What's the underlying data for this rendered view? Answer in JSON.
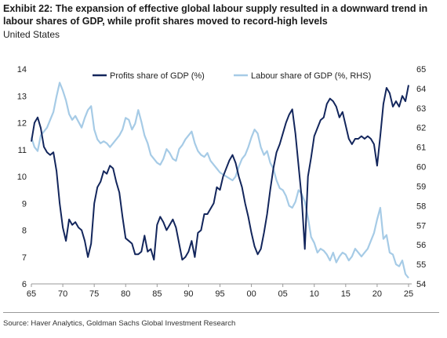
{
  "title_prefix": "Exhibit 22:",
  "title_text": "The expansion of effective global labour supply resulted in a downward trend in labour shares of GDP, while profit shares moved to record-high levels",
  "subtitle": "United States",
  "source": "Source: Haver Analytics, Goldman Sachs Global Investment Research",
  "colors": {
    "profits": "#13265c",
    "labour": "#a6cbe6",
    "axis": "#9a9a9a"
  },
  "chart_data": {
    "type": "line",
    "xlabel": "",
    "x_ticks": [
      "65",
      "70",
      "75",
      "80",
      "85",
      "90",
      "95",
      "00",
      "05",
      "10",
      "15",
      "20",
      "25"
    ],
    "x_range": [
      1965,
      2025.5
    ],
    "ylim_left": [
      6,
      14
    ],
    "y_ticks_left": [
      "6",
      "7",
      "8",
      "9",
      "10",
      "11",
      "12",
      "13",
      "14"
    ],
    "ylim_right": [
      54,
      65
    ],
    "y_ticks_right": [
      "54",
      "55",
      "56",
      "57",
      "58",
      "59",
      "60",
      "61",
      "62",
      "63",
      "64",
      "65"
    ],
    "legend_position": "top",
    "grid": false,
    "series": [
      {
        "name": "Profits share of GDP (%)",
        "axis": "left",
        "points": [
          [
            1965,
            11.3
          ],
          [
            1965.5,
            12.0
          ],
          [
            1966,
            12.2
          ],
          [
            1966.5,
            11.8
          ],
          [
            1967,
            11.1
          ],
          [
            1967.5,
            10.9
          ],
          [
            1968,
            10.8
          ],
          [
            1968.5,
            10.9
          ],
          [
            1969,
            10.2
          ],
          [
            1969.5,
            9.0
          ],
          [
            1970,
            8.1
          ],
          [
            1970.5,
            7.6
          ],
          [
            1971,
            8.4
          ],
          [
            1971.5,
            8.2
          ],
          [
            1972,
            8.3
          ],
          [
            1972.5,
            8.1
          ],
          [
            1973,
            8.0
          ],
          [
            1973.5,
            7.6
          ],
          [
            1974,
            7.0
          ],
          [
            1974.5,
            7.5
          ],
          [
            1975,
            9.0
          ],
          [
            1975.5,
            9.6
          ],
          [
            1976,
            9.8
          ],
          [
            1976.5,
            10.2
          ],
          [
            1977,
            10.1
          ],
          [
            1977.5,
            10.4
          ],
          [
            1978,
            10.3
          ],
          [
            1978.5,
            9.8
          ],
          [
            1979,
            9.4
          ],
          [
            1979.5,
            8.5
          ],
          [
            1980,
            7.7
          ],
          [
            1980.5,
            7.6
          ],
          [
            1981,
            7.5
          ],
          [
            1981.5,
            7.1
          ],
          [
            1982,
            7.1
          ],
          [
            1982.5,
            7.2
          ],
          [
            1983,
            7.8
          ],
          [
            1983.5,
            7.2
          ],
          [
            1984,
            7.3
          ],
          [
            1984.5,
            6.9
          ],
          [
            1985,
            8.2
          ],
          [
            1985.5,
            8.5
          ],
          [
            1986,
            8.3
          ],
          [
            1986.5,
            8.0
          ],
          [
            1987,
            8.2
          ],
          [
            1987.5,
            8.4
          ],
          [
            1988,
            8.1
          ],
          [
            1988.5,
            7.5
          ],
          [
            1989,
            6.9
          ],
          [
            1989.5,
            7.0
          ],
          [
            1990,
            7.2
          ],
          [
            1990.5,
            7.6
          ],
          [
            1991,
            7.0
          ],
          [
            1991.5,
            7.9
          ],
          [
            1992,
            8.0
          ],
          [
            1992.5,
            8.6
          ],
          [
            1993,
            8.6
          ],
          [
            1993.5,
            8.8
          ],
          [
            1994,
            9.0
          ],
          [
            1994.5,
            9.6
          ],
          [
            1995,
            9.5
          ],
          [
            1995.5,
            10.0
          ],
          [
            1996,
            10.3
          ],
          [
            1996.5,
            10.6
          ],
          [
            1997,
            10.8
          ],
          [
            1997.5,
            10.5
          ],
          [
            1998,
            10.0
          ],
          [
            1998.5,
            9.6
          ],
          [
            1999,
            9.0
          ],
          [
            1999.5,
            8.5
          ],
          [
            2000,
            7.9
          ],
          [
            2000.5,
            7.4
          ],
          [
            2001,
            7.1
          ],
          [
            2001.5,
            7.3
          ],
          [
            2002,
            7.9
          ],
          [
            2002.5,
            8.6
          ],
          [
            2003,
            9.5
          ],
          [
            2003.5,
            10.3
          ],
          [
            2004,
            10.9
          ],
          [
            2004.5,
            11.2
          ],
          [
            2005,
            11.6
          ],
          [
            2005.5,
            12.0
          ],
          [
            2006,
            12.3
          ],
          [
            2006.5,
            12.5
          ],
          [
            2007,
            11.6
          ],
          [
            2007.5,
            10.4
          ],
          [
            2008,
            9.2
          ],
          [
            2008.5,
            7.3
          ],
          [
            2009,
            10.0
          ],
          [
            2009.5,
            10.7
          ],
          [
            2010,
            11.5
          ],
          [
            2010.5,
            11.8
          ],
          [
            2011,
            12.1
          ],
          [
            2011.5,
            12.2
          ],
          [
            2012,
            12.7
          ],
          [
            2012.5,
            12.9
          ],
          [
            2013,
            12.8
          ],
          [
            2013.5,
            12.6
          ],
          [
            2014,
            12.2
          ],
          [
            2014.5,
            12.4
          ],
          [
            2015,
            11.9
          ],
          [
            2015.5,
            11.4
          ],
          [
            2016,
            11.2
          ],
          [
            2016.5,
            11.4
          ],
          [
            2017,
            11.4
          ],
          [
            2017.5,
            11.5
          ],
          [
            2018,
            11.4
          ],
          [
            2018.5,
            11.5
          ],
          [
            2019,
            11.4
          ],
          [
            2019.5,
            11.2
          ],
          [
            2020,
            10.4
          ],
          [
            2020.5,
            11.5
          ],
          [
            2021,
            12.7
          ],
          [
            2021.5,
            13.3
          ],
          [
            2022,
            13.1
          ],
          [
            2022.5,
            12.6
          ],
          [
            2023,
            12.8
          ],
          [
            2023.5,
            12.6
          ],
          [
            2024,
            13.0
          ],
          [
            2024.5,
            12.8
          ],
          [
            2025,
            13.4
          ]
        ]
      },
      {
        "name": "Labour share of GDP (%, RHS)",
        "axis": "right",
        "points": [
          [
            1965,
            61.5
          ],
          [
            1965.5,
            61.0
          ],
          [
            1966,
            60.8
          ],
          [
            1966.5,
            61.6
          ],
          [
            1967,
            61.8
          ],
          [
            1967.5,
            62.0
          ],
          [
            1968,
            62.4
          ],
          [
            1968.5,
            62.8
          ],
          [
            1969,
            63.6
          ],
          [
            1969.5,
            64.3
          ],
          [
            1970,
            63.9
          ],
          [
            1970.5,
            63.4
          ],
          [
            1971,
            62.7
          ],
          [
            1971.5,
            62.4
          ],
          [
            1972,
            62.6
          ],
          [
            1972.5,
            62.3
          ],
          [
            1973,
            62.0
          ],
          [
            1973.5,
            62.5
          ],
          [
            1974,
            62.9
          ],
          [
            1974.5,
            63.1
          ],
          [
            1975,
            61.9
          ],
          [
            1975.5,
            61.4
          ],
          [
            1976,
            61.2
          ],
          [
            1976.5,
            61.3
          ],
          [
            1977,
            61.2
          ],
          [
            1977.5,
            61.0
          ],
          [
            1978,
            61.2
          ],
          [
            1978.5,
            61.4
          ],
          [
            1979,
            61.6
          ],
          [
            1979.5,
            61.9
          ],
          [
            1980,
            62.5
          ],
          [
            1980.5,
            62.4
          ],
          [
            1981,
            61.9
          ],
          [
            1981.5,
            62.2
          ],
          [
            1982,
            62.9
          ],
          [
            1982.5,
            62.3
          ],
          [
            1983,
            61.6
          ],
          [
            1983.5,
            61.2
          ],
          [
            1984,
            60.6
          ],
          [
            1984.5,
            60.4
          ],
          [
            1985,
            60.2
          ],
          [
            1985.5,
            60.1
          ],
          [
            1986,
            60.4
          ],
          [
            1986.5,
            60.9
          ],
          [
            1987,
            60.7
          ],
          [
            1987.5,
            60.4
          ],
          [
            1988,
            60.3
          ],
          [
            1988.5,
            60.9
          ],
          [
            1989,
            61.1
          ],
          [
            1989.5,
            61.4
          ],
          [
            1990,
            61.6
          ],
          [
            1990.5,
            61.8
          ],
          [
            1991,
            61.2
          ],
          [
            1991.5,
            60.8
          ],
          [
            1992,
            60.6
          ],
          [
            1992.5,
            60.5
          ],
          [
            1993,
            60.7
          ],
          [
            1993.5,
            60.3
          ],
          [
            1994,
            60.1
          ],
          [
            1994.5,
            59.9
          ],
          [
            1995,
            59.7
          ],
          [
            1995.5,
            59.6
          ],
          [
            1996,
            59.5
          ],
          [
            1996.5,
            59.4
          ],
          [
            1997,
            59.3
          ],
          [
            1997.5,
            59.5
          ],
          [
            1998,
            60.0
          ],
          [
            1998.5,
            60.4
          ],
          [
            1999,
            60.6
          ],
          [
            1999.5,
            61.0
          ],
          [
            2000,
            61.5
          ],
          [
            2000.5,
            61.9
          ],
          [
            2001,
            61.7
          ],
          [
            2001.5,
            61.0
          ],
          [
            2002,
            60.6
          ],
          [
            2002.5,
            60.8
          ],
          [
            2003,
            60.2
          ],
          [
            2003.5,
            59.9
          ],
          [
            2004,
            59.3
          ],
          [
            2004.5,
            58.9
          ],
          [
            2005,
            58.8
          ],
          [
            2005.5,
            58.5
          ],
          [
            2006,
            58.0
          ],
          [
            2006.5,
            57.9
          ],
          [
            2007,
            58.2
          ],
          [
            2007.5,
            58.8
          ],
          [
            2008,
            58.6
          ],
          [
            2008.5,
            58.2
          ],
          [
            2009,
            57.4
          ],
          [
            2009.5,
            56.4
          ],
          [
            2010,
            56.1
          ],
          [
            2010.5,
            55.6
          ],
          [
            2011,
            55.8
          ],
          [
            2011.5,
            55.7
          ],
          [
            2012,
            55.5
          ],
          [
            2012.5,
            55.2
          ],
          [
            2013,
            55.6
          ],
          [
            2013.5,
            55.1
          ],
          [
            2014,
            55.4
          ],
          [
            2014.5,
            55.6
          ],
          [
            2015,
            55.5
          ],
          [
            2015.5,
            55.2
          ],
          [
            2016,
            55.4
          ],
          [
            2016.5,
            55.8
          ],
          [
            2017,
            55.6
          ],
          [
            2017.5,
            55.4
          ],
          [
            2018,
            55.6
          ],
          [
            2018.5,
            55.8
          ],
          [
            2019,
            56.2
          ],
          [
            2019.5,
            56.6
          ],
          [
            2020,
            57.3
          ],
          [
            2020.5,
            57.9
          ],
          [
            2021,
            56.3
          ],
          [
            2021.5,
            56.5
          ],
          [
            2022,
            55.6
          ],
          [
            2022.5,
            55.5
          ],
          [
            2023,
            55.0
          ],
          [
            2023.5,
            54.9
          ],
          [
            2024,
            55.2
          ],
          [
            2024.5,
            54.5
          ],
          [
            2025,
            54.3
          ]
        ]
      }
    ]
  }
}
